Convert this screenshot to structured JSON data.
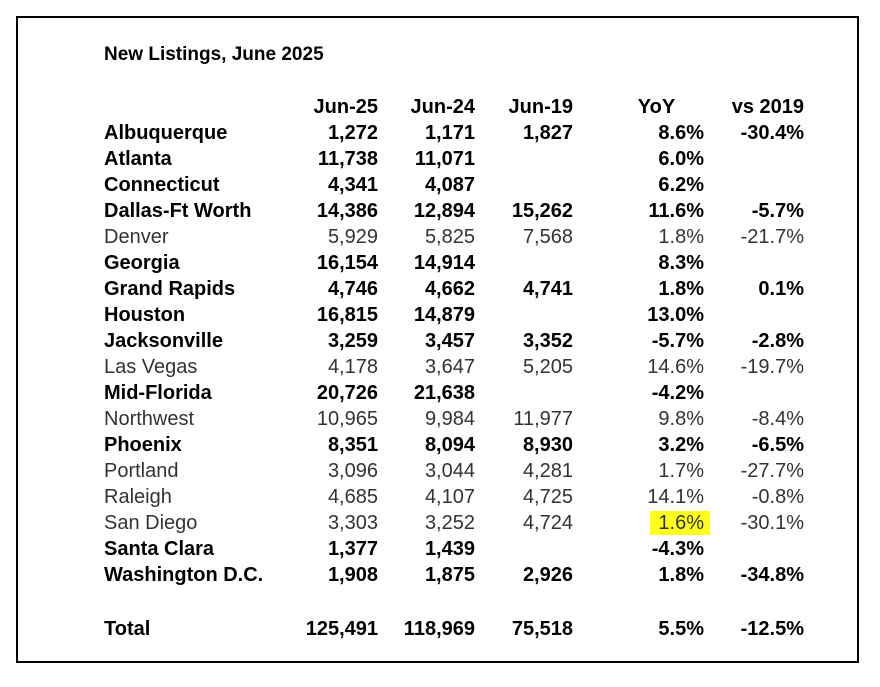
{
  "title": "New Listings, June 2025",
  "headers": [
    "",
    "Jun-25",
    "Jun-24",
    "Jun-19",
    "YoY",
    "vs 2019"
  ],
  "rows": [
    {
      "name": "Albuquerque",
      "jun25": "1,272",
      "jun24": "1,171",
      "jun19": "1,827",
      "yoy": "8.6%",
      "vs2019": "-30.4%",
      "bold": true
    },
    {
      "name": "Atlanta",
      "jun25": "11,738",
      "jun24": "11,071",
      "jun19": "",
      "yoy": "6.0%",
      "vs2019": "",
      "bold": true
    },
    {
      "name": "Connecticut",
      "jun25": "4,341",
      "jun24": "4,087",
      "jun19": "",
      "yoy": "6.2%",
      "vs2019": "",
      "bold": true
    },
    {
      "name": "Dallas-Ft Worth",
      "jun25": "14,386",
      "jun24": "12,894",
      "jun19": "15,262",
      "yoy": "11.6%",
      "vs2019": "-5.7%",
      "bold": true
    },
    {
      "name": "Denver",
      "jun25": "5,929",
      "jun24": "5,825",
      "jun19": "7,568",
      "yoy": "1.8%",
      "vs2019": "-21.7%",
      "bold": false
    },
    {
      "name": "Georgia",
      "jun25": "16,154",
      "jun24": "14,914",
      "jun19": "",
      "yoy": "8.3%",
      "vs2019": "",
      "bold": true
    },
    {
      "name": "Grand Rapids",
      "jun25": "4,746",
      "jun24": "4,662",
      "jun19": "4,741",
      "yoy": "1.8%",
      "vs2019": "0.1%",
      "bold": true
    },
    {
      "name": "Houston",
      "jun25": "16,815",
      "jun24": "14,879",
      "jun19": "",
      "yoy": "13.0%",
      "vs2019": "",
      "bold": true
    },
    {
      "name": "Jacksonville",
      "jun25": "3,259",
      "jun24": "3,457",
      "jun19": "3,352",
      "yoy": "-5.7%",
      "vs2019": "-2.8%",
      "bold": true
    },
    {
      "name": "Las Vegas",
      "jun25": "4,178",
      "jun24": "3,647",
      "jun19": "5,205",
      "yoy": "14.6%",
      "vs2019": "-19.7%",
      "bold": false
    },
    {
      "name": "Mid-Florida",
      "jun25": "20,726",
      "jun24": "21,638",
      "jun19": "",
      "yoy": "-4.2%",
      "vs2019": "",
      "bold": true
    },
    {
      "name": "Northwest",
      "jun25": "10,965",
      "jun24": "9,984",
      "jun19": "11,977",
      "yoy": "9.8%",
      "vs2019": "-8.4%",
      "bold": false
    },
    {
      "name": "Phoenix",
      "jun25": "8,351",
      "jun24": "8,094",
      "jun19": "8,930",
      "yoy": "3.2%",
      "vs2019": "-6.5%",
      "bold": true
    },
    {
      "name": "Portland",
      "jun25": "3,096",
      "jun24": "3,044",
      "jun19": "4,281",
      "yoy": "1.7%",
      "vs2019": "-27.7%",
      "bold": false
    },
    {
      "name": "Raleigh",
      "jun25": "4,685",
      "jun24": "4,107",
      "jun19": "4,725",
      "yoy": "14.1%",
      "vs2019": "-0.8%",
      "bold": false
    },
    {
      "name": "San Diego",
      "jun25": "3,303",
      "jun24": "3,252",
      "jun19": "4,724",
      "yoy": "1.6%",
      "vs2019": "-30.1%",
      "bold": false,
      "highlight_color": "#ffff1a"
    },
    {
      "name": "Santa Clara",
      "jun25": "1,377",
      "jun24": "1,439",
      "jun19": "",
      "yoy": "-4.3%",
      "vs2019": "",
      "bold": true
    },
    {
      "name": "Washington D.C.",
      "jun25": "1,908",
      "jun24": "1,875",
      "jun19": "2,926",
      "yoy": "1.8%",
      "vs2019": "-34.8%",
      "bold": true
    }
  ],
  "total": {
    "name": "Total",
    "jun25": "125,491",
    "jun24": "118,969",
    "jun19": "75,518",
    "yoy": "5.5%",
    "vs2019": "-12.5%"
  }
}
